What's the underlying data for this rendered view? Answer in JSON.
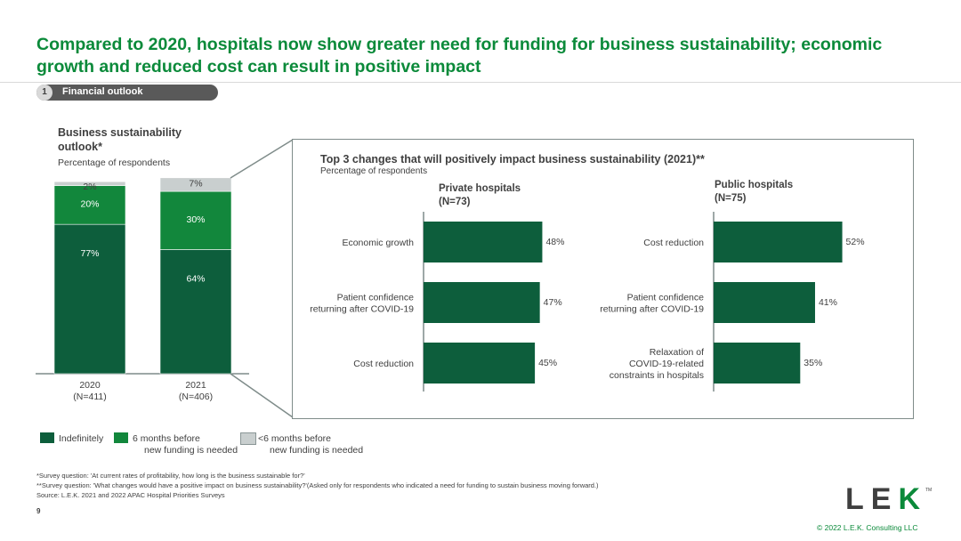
{
  "title": "Compared to 2020, hospitals now show greater need for funding for business sustainability; economic growth and reduced cost can result in positive impact",
  "section": {
    "number": "1",
    "label": "Financial outlook"
  },
  "colors": {
    "dark_green": "#0d5e3c",
    "green": "#12873c",
    "grey": "#c9cfcf",
    "brand_green": "#0b8a3a"
  },
  "left_chart": {
    "title": "Business sustainability outlook*",
    "subtitle": "Percentage of respondents"
  },
  "right_panel": {
    "title": "Top 3 changes that will positively impact business sustainability (2021)**",
    "subtitle": "Percentage of respondents",
    "private_head": "Private hospitals",
    "private_n": "(N=73)",
    "public_head": "Public hospitals",
    "public_n": "(N=75)"
  },
  "chart_data": [
    {
      "type": "bar",
      "stacked": true,
      "title": "Business sustainability outlook*",
      "subtitle": "Percentage of respondents",
      "categories": [
        "2020",
        "2021"
      ],
      "category_n": [
        "(N=411)",
        "(N=406)"
      ],
      "ylim": [
        0,
        100
      ],
      "series": [
        {
          "name": "Indefinitely",
          "values": [
            77,
            64
          ],
          "labels": [
            "77%",
            "64%"
          ],
          "color": "#0d5e3c"
        },
        {
          "name": "6 months before new funding is needed",
          "values": [
            20,
            30
          ],
          "labels": [
            "20%",
            "30%"
          ],
          "color": "#12873c"
        },
        {
          "name": "<6 months before new funding is needed",
          "values": [
            2,
            7
          ],
          "labels": [
            "2%",
            "7%"
          ],
          "color": "#c9cfcf"
        }
      ],
      "legend": [
        {
          "line1": "Indefinitely",
          "line2": "",
          "color": "#0d5e3c"
        },
        {
          "line1": "6 months before",
          "line2": "new funding is needed",
          "color": "#12873c"
        },
        {
          "line1": "<6 months before",
          "line2": "new funding is needed",
          "color": "#c9cfcf"
        }
      ],
      "legend_position": "bottom"
    },
    {
      "type": "bar",
      "orientation": "horizontal",
      "title": "Private hospitals (N=73)",
      "categories": [
        [
          "Economic growth"
        ],
        [
          "Patient confidence",
          "returning after COVID-19"
        ],
        [
          "Cost reduction"
        ]
      ],
      "values": [
        48,
        47,
        45
      ],
      "labels": [
        "48%",
        "47%",
        "45%"
      ],
      "color": "#0d5e3c"
    },
    {
      "type": "bar",
      "orientation": "horizontal",
      "title": "Public hospitals (N=75)",
      "categories": [
        [
          "Cost reduction"
        ],
        [
          "Patient confidence",
          "returning after COVID-19"
        ],
        [
          "Relaxation of",
          "COVID-19-related",
          "constraints in hospitals"
        ]
      ],
      "values": [
        52,
        41,
        35
      ],
      "labels": [
        "52%",
        "41%",
        "35%"
      ],
      "color": "#0d5e3c"
    }
  ],
  "footnotes": {
    "line1": "*Survey question: 'At current rates of profitability, how long is the business sustainable for?'",
    "line2": "**Survey question: 'What changes would have a positive impact on business sustainability?'(Asked only for respondents who indicated a need for funding to sustain business moving forward.)",
    "source": "Source:  L.E.K. 2021 and 2022 APAC Hospital Priorities Surveys"
  },
  "page_number": "9",
  "logo": {
    "text": "LEK",
    "tm": "TM"
  },
  "copyright": "© 2022 L.E.K. Consulting LLC"
}
